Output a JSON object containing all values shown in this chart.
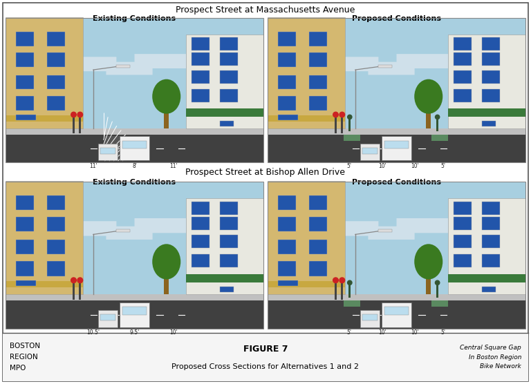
{
  "title_top": "Prospect Street at Massachusetts Avenue",
  "title_mid": "Prospect Street at Bishop Allen Drive",
  "label_existing": "Existing Conditions",
  "label_proposed": "Proposed Conditions",
  "footer_left": "BOSTON\nREGION\nMPO",
  "footer_center_bold": "FIGURE 7",
  "footer_center_normal": "Proposed Cross Sections for Alternatives 1 and 2",
  "footer_right": "Central Square Gap\nIn Boston Region\nBike Network",
  "bg_color": "#ffffff",
  "sky_color": "#a8cfe0",
  "cloud_color": "#c8dfe8",
  "road_color": "#404040",
  "sidewalk_color": "#b8b8b8",
  "building_left_color": "#d4b870",
  "building_right_color": "#e8e8e0",
  "awning_green": "#3a7a3a",
  "awning_tan": "#c8a840",
  "win_color": "#2255aa",
  "tree_trunk": "#8B6420",
  "tree_top": "#3a7a20",
  "pole_color": "#888888",
  "road_stripe": "#ffffff",
  "top_row_labels_1": [
    "11'",
    "8'",
    "11'"
  ],
  "top_row_labels_2": [
    "5'",
    "10'",
    "10'",
    "5'"
  ],
  "bot_row_labels_1": [
    "10.5'",
    "9.5'",
    "10'"
  ],
  "bot_row_labels_2": [
    "5'",
    "10'",
    "10'",
    "5'"
  ]
}
